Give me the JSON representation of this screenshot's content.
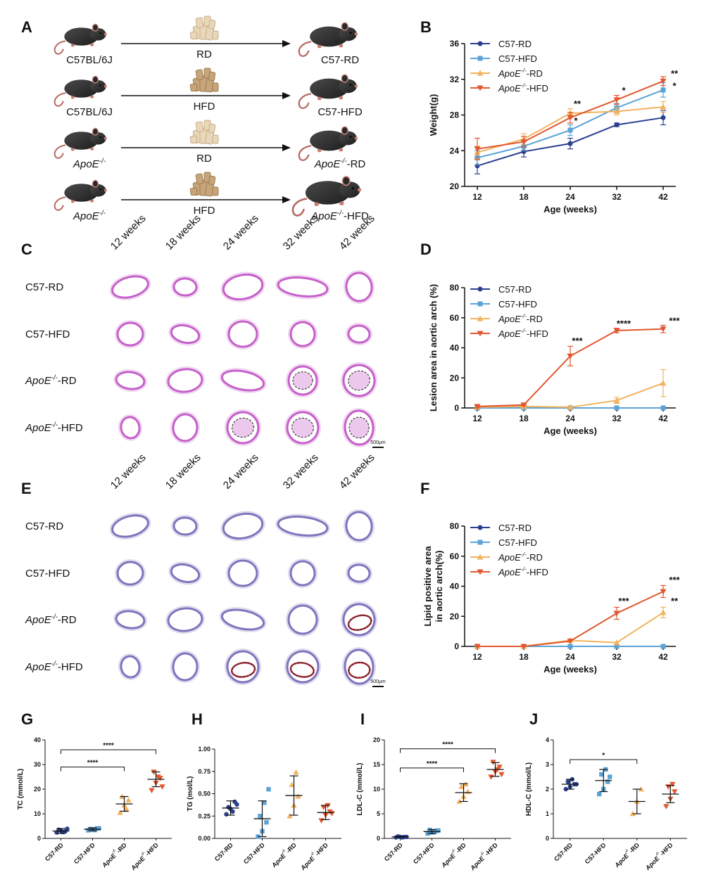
{
  "panels": {
    "A": "A",
    "B": "B",
    "C": "C",
    "D": "D",
    "E": "E",
    "F": "F",
    "G": "G",
    "H": "H",
    "I": "I",
    "J": "J"
  },
  "colors": {
    "c57rd": "#2b3f8f",
    "c57hfd": "#5ba3d6",
    "apoerd": "#f2b25e",
    "apoehfd": "#e2572f",
    "he": "#c560c9",
    "oro": "#7f74bd"
  },
  "schema": {
    "rows": [
      {
        "start": "C57BL/6J",
        "diet": "RD",
        "end": "C57-RD",
        "start_italic": false,
        "end_italic": false,
        "diet_type": "rd"
      },
      {
        "start": "C57BL/6J",
        "diet": "HFD",
        "end": "C57-HFD",
        "start_italic": false,
        "end_italic": false,
        "diet_type": "hfd"
      },
      {
        "start": "ApoE",
        "diet": "RD",
        "end": "-RD",
        "start_italic": true,
        "end_italic": true,
        "diet_type": "rd"
      },
      {
        "start": "ApoE",
        "diet": "HFD",
        "end": "-HFD",
        "start_italic": true,
        "end_italic": true,
        "diet_type": "hfd"
      }
    ],
    "apoe_sup": "-/-"
  },
  "histology_C": {
    "columns": [
      "12 weeks",
      "18 weeks",
      "24 weeks",
      "32 weeks",
      "42 weeks"
    ],
    "rows": [
      "C57-RD",
      "C57-HFD",
      "ApoE-RD",
      "ApoE-HFD"
    ],
    "scale": "500μm"
  },
  "histology_E": {
    "columns": [
      "12 weeks",
      "18 weeks",
      "24 weeks",
      "32 weeks",
      "42 weeks"
    ],
    "rows": [
      "C57-RD",
      "C57-HFD",
      "ApoE-RD",
      "ApoE-HFD"
    ],
    "scale": "500μm"
  },
  "legend": [
    "C57-RD",
    "C57-HFD",
    "ApoE-RD",
    "ApoE-HFD"
  ],
  "chart_data": [
    {
      "id": "B",
      "type": "line",
      "xlabel": "Age (weeks)",
      "ylabel": "Weight(g)",
      "categories": [
        "12",
        "18",
        "24",
        "32",
        "42"
      ],
      "ylim": [
        20,
        36
      ],
      "yticks": [
        20,
        24,
        28,
        32,
        36
      ],
      "series": [
        {
          "name": "C57-RD",
          "values": [
            22.3,
            23.9,
            24.8,
            26.9,
            27.7
          ],
          "err": [
            0.9,
            0.6,
            0.6,
            0.2,
            0.8
          ]
        },
        {
          "name": "C57-HFD",
          "values": [
            23.2,
            24.5,
            26.3,
            28.8,
            30.8
          ],
          "err": [
            0.8,
            0.5,
            0.6,
            0.5,
            0.8
          ]
        },
        {
          "name": "ApoE-RD",
          "values": [
            23.8,
            25.3,
            28.2,
            28.4,
            28.9
          ],
          "err": [
            0.7,
            0.6,
            0.5,
            0.4,
            0.6
          ]
        },
        {
          "name": "ApoE-HFD",
          "values": [
            24.2,
            25.0,
            27.7,
            29.7,
            31.8
          ],
          "err": [
            1.2,
            0.6,
            0.6,
            0.5,
            0.5
          ]
        }
      ],
      "annotations": [
        {
          "x": "24",
          "y": 28.9,
          "text": "**"
        },
        {
          "x": "24",
          "y": 27.0,
          "text": "*"
        },
        {
          "x": "32",
          "y": 30.4,
          "text": "*"
        },
        {
          "x": "42",
          "y": 32.3,
          "text": "**"
        },
        {
          "x": "42",
          "y": 30.9,
          "text": "*"
        }
      ]
    },
    {
      "id": "D",
      "type": "line",
      "xlabel": "Age (weeks)",
      "ylabel": "Lesion area in aortic arch (%)",
      "categories": [
        "12",
        "18",
        "24",
        "32",
        "42"
      ],
      "ylim": [
        0,
        80
      ],
      "yticks": [
        0,
        20,
        40,
        60,
        80
      ],
      "series": [
        {
          "name": "C57-RD",
          "values": [
            0,
            0,
            0,
            0,
            0
          ],
          "err": [
            0,
            0,
            0,
            0,
            0
          ]
        },
        {
          "name": "C57-HFD",
          "values": [
            0,
            0,
            0,
            0,
            0
          ],
          "err": [
            0,
            0,
            0,
            0,
            0
          ]
        },
        {
          "name": "ApoE-RD",
          "values": [
            0.5,
            1,
            0.5,
            5,
            16.5
          ],
          "err": [
            0,
            0,
            0,
            2,
            9
          ]
        },
        {
          "name": "ApoE-HFD",
          "values": [
            1,
            2,
            34.5,
            51.5,
            52.5
          ],
          "err": [
            1,
            0.5,
            6.5,
            1.5,
            2.5
          ]
        }
      ],
      "annotations": [
        {
          "x": "24",
          "y": 42.5,
          "text": "***"
        },
        {
          "x": "32",
          "y": 54,
          "text": "****"
        },
        {
          "x": "42",
          "y": 56,
          "text": "***"
        }
      ]
    },
    {
      "id": "F",
      "type": "line",
      "xlabel": "Age (weeks)",
      "ylabel": "Lipid positive area in aortic arch(%)",
      "categories": [
        "12",
        "18",
        "24",
        "32",
        "42"
      ],
      "ylim": [
        0,
        80
      ],
      "yticks": [
        0,
        20,
        40,
        60,
        80
      ],
      "series": [
        {
          "name": "C57-RD",
          "values": [
            0,
            0,
            0,
            0,
            0
          ],
          "err": [
            0,
            0,
            0,
            0,
            0
          ]
        },
        {
          "name": "C57-HFD",
          "values": [
            0,
            0,
            0,
            0,
            0
          ],
          "err": [
            0,
            0,
            0,
            0,
            0
          ]
        },
        {
          "name": "ApoE-RD",
          "values": [
            0,
            0,
            4,
            2.5,
            22.5
          ],
          "err": [
            0,
            0,
            0,
            0,
            3.5
          ]
        },
        {
          "name": "ApoE-HFD",
          "values": [
            0,
            0,
            3.5,
            22,
            36.5
          ],
          "err": [
            0,
            0,
            0,
            4,
            4
          ]
        }
      ],
      "annotations": [
        {
          "x": "32",
          "y": 28,
          "text": "***"
        },
        {
          "x": "42",
          "y": 42,
          "text": "***"
        },
        {
          "x": "42",
          "y": 28,
          "text": "**"
        }
      ]
    },
    {
      "id": "G",
      "type": "scatter",
      "ylabel": "TC (mmol/L)",
      "categories": [
        "C57-RD",
        "C57-HFD",
        "ApoE-RD",
        "ApoE-HFD"
      ],
      "ylim": [
        0,
        40
      ],
      "yticks": [
        0,
        10,
        20,
        30,
        40
      ],
      "means": [
        3.0,
        3.7,
        14.0,
        24.0
      ],
      "sd": [
        1.0,
        0.6,
        3.0,
        3.0
      ],
      "points": [
        [
          2.4,
          3.2,
          2.8,
          3.5,
          2.6,
          3.9
        ],
        [
          3.3,
          3.6,
          4.0,
          3.8,
          3.4,
          4.1
        ],
        [
          10.5,
          13.5,
          15.5,
          17.0,
          12.0
        ],
        [
          19.5,
          22.5,
          24.5,
          27.0,
          25.0,
          21.0
        ]
      ],
      "brackets": [
        {
          "from": 0,
          "to": 2,
          "y": 29,
          "text": "****"
        },
        {
          "from": 0,
          "to": 3,
          "y": 36,
          "text": "****"
        }
      ]
    },
    {
      "id": "H",
      "type": "scatter",
      "ylabel": "TG (mol/L)",
      "categories": [
        "C57-RD",
        "C57-HFD",
        "ApoE-RD",
        "ApoE-HFD"
      ],
      "ylim": [
        0,
        1.0
      ],
      "yticks": [
        "0.00",
        "0.25",
        "0.50",
        "0.75",
        "1.00"
      ],
      "means": [
        0.34,
        0.22,
        0.48,
        0.29
      ],
      "sd": [
        0.08,
        0.2,
        0.22,
        0.08
      ],
      "points": [
        [
          0.27,
          0.33,
          0.41,
          0.35,
          0.3,
          0.38
        ],
        [
          0.02,
          0.08,
          0.18,
          0.25,
          0.4,
          0.55
        ],
        [
          0.25,
          0.37,
          0.47,
          0.6,
          0.74
        ],
        [
          0.2,
          0.26,
          0.3,
          0.35,
          0.37,
          0.28
        ]
      ],
      "brackets": []
    },
    {
      "id": "I",
      "type": "scatter",
      "ylabel": "LDL-C (mmol/L)",
      "categories": [
        "C57-RD",
        "C57-HFD",
        "ApoE-RD",
        "ApoE-HFD"
      ],
      "ylim": [
        0,
        20
      ],
      "yticks": [
        0,
        5,
        10,
        15,
        20
      ],
      "means": [
        0.3,
        1.4,
        9.3,
        14.0
      ],
      "sd": [
        0.1,
        0.4,
        1.8,
        1.4
      ],
      "points": [
        [
          0.2,
          0.3,
          0.3,
          0.4,
          0.2,
          0.3
        ],
        [
          1.0,
          1.2,
          1.5,
          1.7,
          1.3,
          1.6
        ],
        [
          7.5,
          8.5,
          9.5,
          10.5,
          11.0
        ],
        [
          12.5,
          13.5,
          14.5,
          15.5,
          14.0,
          13.0
        ]
      ],
      "brackets": [
        {
          "from": 0,
          "to": 2,
          "y": 14.3,
          "text": "****"
        },
        {
          "from": 0,
          "to": 3,
          "y": 18.2,
          "text": "****"
        }
      ]
    },
    {
      "id": "J",
      "type": "scatter",
      "ylabel": "HDL-C (mmol/L)",
      "categories": [
        "C57-RD",
        "C57-HFD",
        "ApoE-RD",
        "ApoE-HFD"
      ],
      "ylim": [
        0,
        4
      ],
      "yticks": [
        0,
        1,
        2,
        3,
        4
      ],
      "means": [
        2.2,
        2.35,
        1.5,
        1.8
      ],
      "sd": [
        0.2,
        0.45,
        0.5,
        0.35
      ],
      "points": [
        [
          2.0,
          2.1,
          2.2,
          2.3,
          2.4,
          2.2
        ],
        [
          1.8,
          2.0,
          2.3,
          2.6,
          2.8,
          2.5
        ],
        [
          1.0,
          1.5,
          2.0
        ],
        [
          1.3,
          1.6,
          1.9,
          2.1,
          2.2
        ]
      ],
      "brackets": [
        {
          "from": 0,
          "to": 2,
          "y": 3.2,
          "text": "*"
        }
      ]
    }
  ]
}
